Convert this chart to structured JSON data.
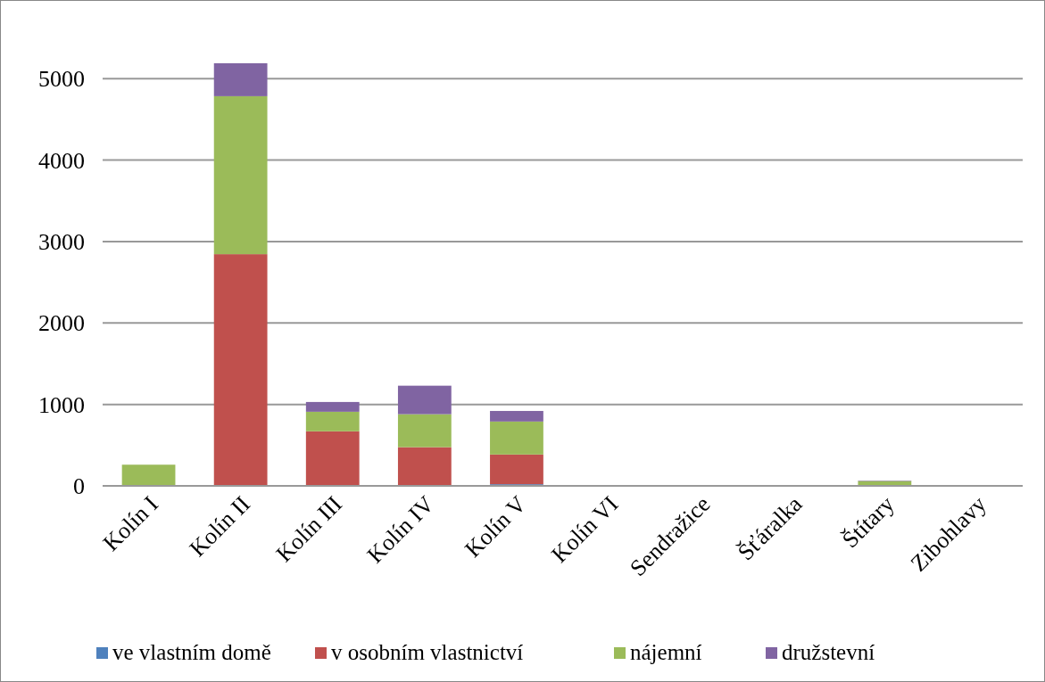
{
  "chart_data": {
    "type": "bar",
    "stacked": true,
    "categories": [
      "Kolín I",
      "Kolín II",
      "Kolín III",
      "Kolín IV",
      "Kolín V",
      "Kolín VI",
      "Sendražice",
      "Šťáralka",
      "Štítary",
      "Zibohlavy"
    ],
    "series": [
      {
        "name": "ve vlastním domě",
        "color": "#4f81bd",
        "values": [
          0,
          5,
          5,
          5,
          20,
          0,
          0,
          0,
          0,
          0
        ]
      },
      {
        "name": "v osobním vlastnictví",
        "color": "#c0504d",
        "values": [
          10,
          2840,
          665,
          470,
          365,
          0,
          0,
          0,
          0,
          10
        ]
      },
      {
        "name": "nájemní",
        "color": "#9bbb59",
        "values": [
          250,
          1940,
          240,
          405,
          405,
          10,
          8,
          0,
          60,
          0
        ]
      },
      {
        "name": "družstevní",
        "color": "#8064a2",
        "values": [
          0,
          405,
          120,
          350,
          130,
          0,
          0,
          0,
          5,
          0
        ]
      }
    ],
    "ylim": [
      0,
      5200
    ],
    "yticks": [
      0,
      1000,
      2000,
      3000,
      4000,
      5000
    ],
    "grid": "y",
    "legend": "bottom"
  }
}
